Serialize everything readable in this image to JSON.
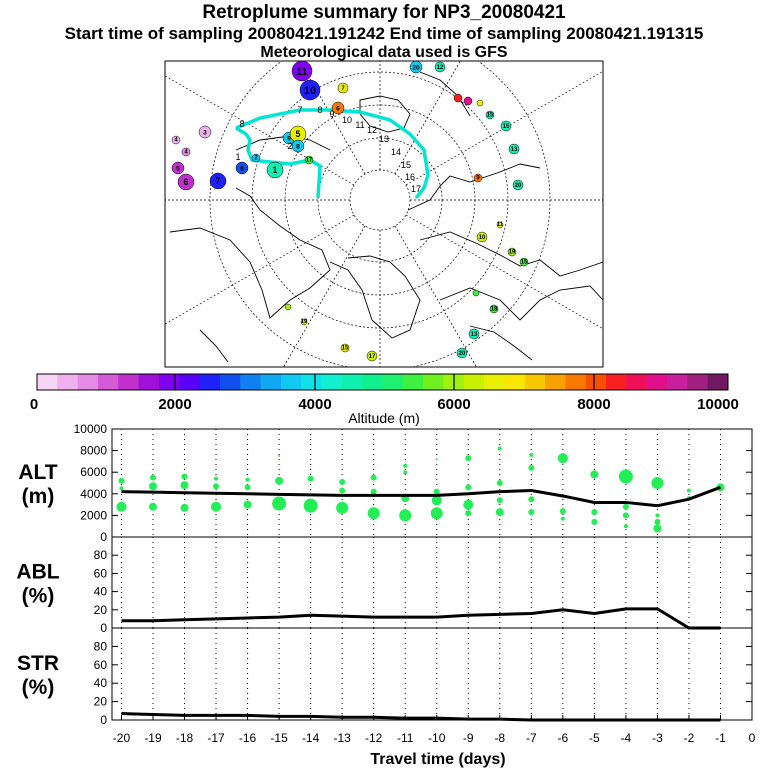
{
  "header": {
    "title": "Retroplume summary for NP3_20080421",
    "sampling_line": "Start time of sampling 20080421.191242     End time of sampling 20080421.191315",
    "met_line": "Meteorological data used is GFS"
  },
  "map": {
    "trajectory_color": "#00e6d2",
    "point_labels": [
      "1",
      "2",
      "3",
      "4",
      "5",
      "6",
      "7",
      "8",
      "9",
      "10",
      "11",
      "12",
      "13",
      "14",
      "15",
      "16",
      "17",
      "18",
      "19",
      "20"
    ]
  },
  "colorbar": {
    "tick_labels": [
      "0",
      "2000",
      "4000",
      "6000",
      "8000",
      "10000"
    ],
    "label": "Altitude (m)",
    "colors": [
      "#f7d6f5",
      "#f0b2ef",
      "#e58ae6",
      "#d45ad6",
      "#c030cc",
      "#a010d8",
      "#8000f0",
      "#5a00f8",
      "#2020f8",
      "#1050f0",
      "#1080f0",
      "#10a8f0",
      "#10c8f0",
      "#10e0e8",
      "#10f0d0",
      "#10f0b0",
      "#10f090",
      "#20f070",
      "#40f040",
      "#70f020",
      "#a0f010",
      "#c8f000",
      "#e8f000",
      "#f8e800",
      "#f8c800",
      "#f8a000",
      "#f87800",
      "#f85000",
      "#f82020",
      "#f0105a",
      "#e0108c",
      "#c8209c",
      "#a02080",
      "#701860"
    ]
  },
  "chart_data": [
    {
      "type": "scatter",
      "panel": "ALT",
      "ylabel": "ALT\n(m)",
      "ylabel_lines": [
        "ALT",
        "(m)"
      ],
      "ylim": [
        0,
        10000
      ],
      "yticks": [
        0,
        2000,
        4000,
        6000,
        8000,
        10000
      ],
      "xlim": [
        -20.3,
        0
      ],
      "median_line": {
        "x": [
          -20,
          -19,
          -18,
          -17,
          -16,
          -15,
          -14,
          -13,
          -12,
          -11,
          -10,
          -9,
          -8,
          -7,
          -6,
          -5,
          -4,
          -3,
          -2,
          -1
        ],
        "y": [
          4200,
          4150,
          4100,
          4050,
          4000,
          3950,
          3900,
          3850,
          3850,
          3850,
          3850,
          4000,
          4200,
          4300,
          3800,
          3200,
          3200,
          2900,
          3500,
          4600
        ]
      },
      "dots": {
        "x": [
          -20,
          -20,
          -20,
          -19,
          -19,
          -19,
          -18,
          -18,
          -18,
          -17,
          -17,
          -17,
          -16,
          -16,
          -16,
          -15,
          -15,
          -15,
          -14,
          -14,
          -13,
          -13,
          -13,
          -12,
          -12,
          -12,
          -11,
          -11,
          -11,
          -11,
          -10,
          -10,
          -10,
          -10,
          -9,
          -9,
          -9,
          -9,
          -8,
          -8,
          -8,
          -8,
          -7,
          -7,
          -7,
          -7,
          -6,
          -6,
          -6,
          -5,
          -5,
          -5,
          -4,
          -4,
          -4,
          -4,
          -3,
          -3,
          -3,
          -3,
          -2,
          -2,
          -1
        ],
        "y": [
          5200,
          4500,
          2800,
          5500,
          4700,
          2800,
          5600,
          4800,
          2700,
          5400,
          4700,
          2800,
          5300,
          4600,
          3000,
          7500,
          5200,
          3100,
          5400,
          2900,
          5100,
          2700,
          4300,
          5500,
          4200,
          2200,
          6600,
          6000,
          3600,
          2000,
          7200,
          4200,
          3400,
          2200,
          7300,
          4600,
          3000,
          2200,
          8200,
          5000,
          3400,
          2300,
          7600,
          6400,
          3500,
          2300,
          7300,
          2400,
          1700,
          5800,
          2300,
          1400,
          5600,
          2800,
          2000,
          1000,
          5000,
          2000,
          1400,
          800,
          4300,
          3600,
          4600
        ],
        "s": [
          3,
          2,
          5,
          3,
          4,
          4,
          3,
          4,
          4,
          2,
          3,
          5,
          2,
          3,
          4,
          1,
          4,
          7,
          3,
          7,
          3,
          6,
          3,
          3,
          3,
          6,
          2,
          2,
          4,
          6,
          1,
          3,
          5,
          6,
          3,
          3,
          5,
          3,
          2,
          3,
          3,
          4,
          2,
          3,
          3,
          3,
          5,
          3,
          2,
          4,
          3,
          3,
          7,
          3,
          3,
          2,
          6,
          2,
          3,
          4,
          2,
          2,
          4
        ]
      }
    },
    {
      "type": "line",
      "panel": "ABL",
      "ylabel": "ABL\n(%)",
      "ylabel_lines": [
        "ABL",
        "(%)"
      ],
      "ylim": [
        0,
        100
      ],
      "yticks": [
        0,
        20,
        40,
        60,
        80
      ],
      "xlim": [
        -20.3,
        0
      ],
      "x": [
        -20,
        -19,
        -18,
        -17,
        -16,
        -15,
        -14,
        -13,
        -12,
        -11,
        -10,
        -9,
        -8,
        -7,
        -6,
        -5,
        -4,
        -3,
        -2,
        -1
      ],
      "y": [
        8,
        8,
        9,
        10,
        11,
        12,
        14,
        13,
        12,
        12,
        12,
        14,
        15,
        16,
        20,
        16,
        21,
        21,
        0,
        0
      ]
    },
    {
      "type": "line",
      "panel": "STR",
      "ylabel": "STR\n(%)",
      "ylabel_lines": [
        "STR",
        "(%)"
      ],
      "ylim": [
        0,
        100
      ],
      "yticks": [
        0,
        20,
        40,
        60,
        80
      ],
      "xlim": [
        -20.3,
        0
      ],
      "x": [
        -20,
        -19,
        -18,
        -17,
        -16,
        -15,
        -14,
        -13,
        -12,
        -11,
        -10,
        -9,
        -8,
        -7,
        -6,
        -5,
        -4,
        -3,
        -2,
        -1
      ],
      "y": [
        7,
        6,
        5,
        5,
        5,
        4,
        4,
        3,
        3,
        2,
        2,
        1,
        1,
        0,
        0,
        0,
        0,
        0,
        0,
        0
      ]
    }
  ],
  "x_axis": {
    "tick_values": [
      -20,
      -19,
      -18,
      -17,
      -16,
      -15,
      -14,
      -13,
      -12,
      -11,
      -10,
      -9,
      -8,
      -7,
      -6,
      -5,
      -4,
      -3,
      -2,
      -1,
      0
    ],
    "tick_labels": [
      "-20",
      "-19",
      "-18",
      "-17",
      "-16",
      "-15",
      "-14",
      "-13",
      "-12",
      "-11",
      "-10",
      "-9",
      "-8",
      "-7",
      "-6",
      "-5",
      "-4",
      "-3",
      "-2",
      "-1",
      "0"
    ],
    "label": "Travel time (days)"
  },
  "dot_color": "#22ee55"
}
